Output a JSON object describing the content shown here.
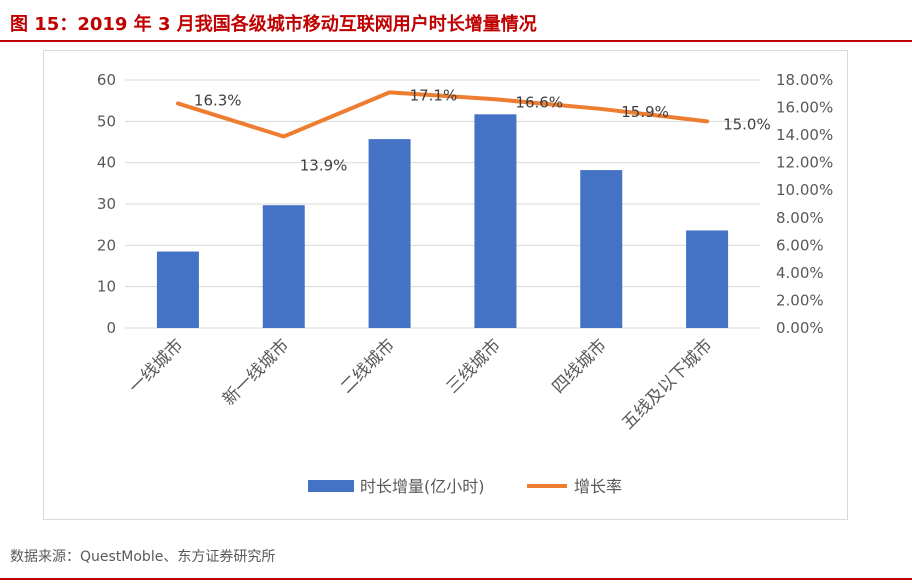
{
  "title": "图 15：2019 年 3 月我国各级城市移动互联网用户时长增量情况",
  "source": "数据来源：QuestMoble、东方证券研究所",
  "colors": {
    "bar": "#4472c4",
    "line": "#ed7d31",
    "title": "#c00000",
    "axis_text": "#595959",
    "grid": "#d9d9d9"
  },
  "chart_data": {
    "type": "bar",
    "categories": [
      "一线城市",
      "新一线城市",
      "二线城市",
      "三线城市",
      "四线城市",
      "五线及以下城市"
    ],
    "series": [
      {
        "name": "时长增量(亿小时)",
        "type": "bar",
        "axis": "left",
        "values": [
          18.5,
          29.7,
          45.7,
          51.7,
          38.2,
          23.6
        ]
      },
      {
        "name": "增长率",
        "type": "line",
        "axis": "right",
        "values": [
          16.3,
          13.9,
          17.1,
          16.6,
          15.9,
          15.0
        ],
        "labels": [
          "16.3%",
          "13.9%",
          "17.1%",
          "16.6%",
          "15.9%",
          "15.0%"
        ]
      }
    ],
    "left_axis": {
      "ylim": [
        0,
        60
      ],
      "ticks": [
        "0",
        "10",
        "20",
        "30",
        "40",
        "50",
        "60"
      ]
    },
    "right_axis": {
      "ylim": [
        0,
        18
      ],
      "ticks": [
        "0.00%",
        "2.00%",
        "4.00%",
        "6.00%",
        "8.00%",
        "10.00%",
        "12.00%",
        "14.00%",
        "16.00%",
        "18.00%"
      ]
    },
    "gridlines": true,
    "legend_position": "bottom"
  }
}
